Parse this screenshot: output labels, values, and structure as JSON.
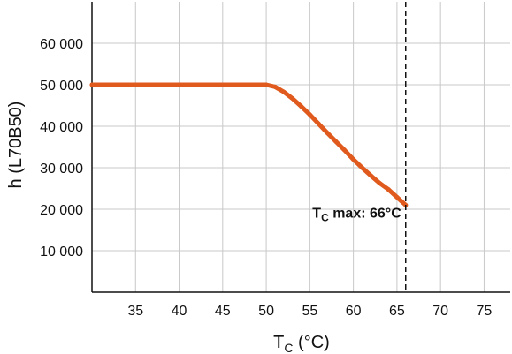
{
  "chart_data": {
    "type": "line",
    "xlabel": "T",
    "xlabel_sub": "C",
    "xlabel_unit": " (°C)",
    "ylabel": "h (L70B50)",
    "xlim": [
      30,
      78
    ],
    "ylim": [
      0,
      70000
    ],
    "x_ticks": [
      35,
      40,
      45,
      50,
      55,
      60,
      65,
      70,
      75
    ],
    "x_tick_labels": [
      "35",
      "40",
      "45",
      "50",
      "55",
      "60",
      "65",
      "70",
      "75"
    ],
    "y_ticks": [
      10000,
      20000,
      30000,
      40000,
      50000,
      60000
    ],
    "y_tick_labels": [
      "10 000",
      "20 000",
      "30 000",
      "40 000",
      "50 000",
      "60 000"
    ],
    "grid": true,
    "series": [
      {
        "color": "#e05a1e",
        "x": [
          30,
          35,
          40,
          45,
          50,
          51,
          52,
          53,
          54,
          55,
          56,
          57,
          58,
          59,
          60,
          61,
          62,
          63,
          64,
          65,
          66
        ],
        "y": [
          50000,
          50000,
          50000,
          50000,
          50000,
          49500,
          48300,
          46700,
          44800,
          42800,
          40600,
          38400,
          36300,
          34200,
          32000,
          30000,
          28100,
          26300,
          24800,
          22900,
          21000
        ]
      }
    ],
    "reference_line": {
      "x": 66,
      "style": "dashed",
      "label_main": "T",
      "label_sub": "C",
      "label_rest": " max: 66°C"
    }
  }
}
